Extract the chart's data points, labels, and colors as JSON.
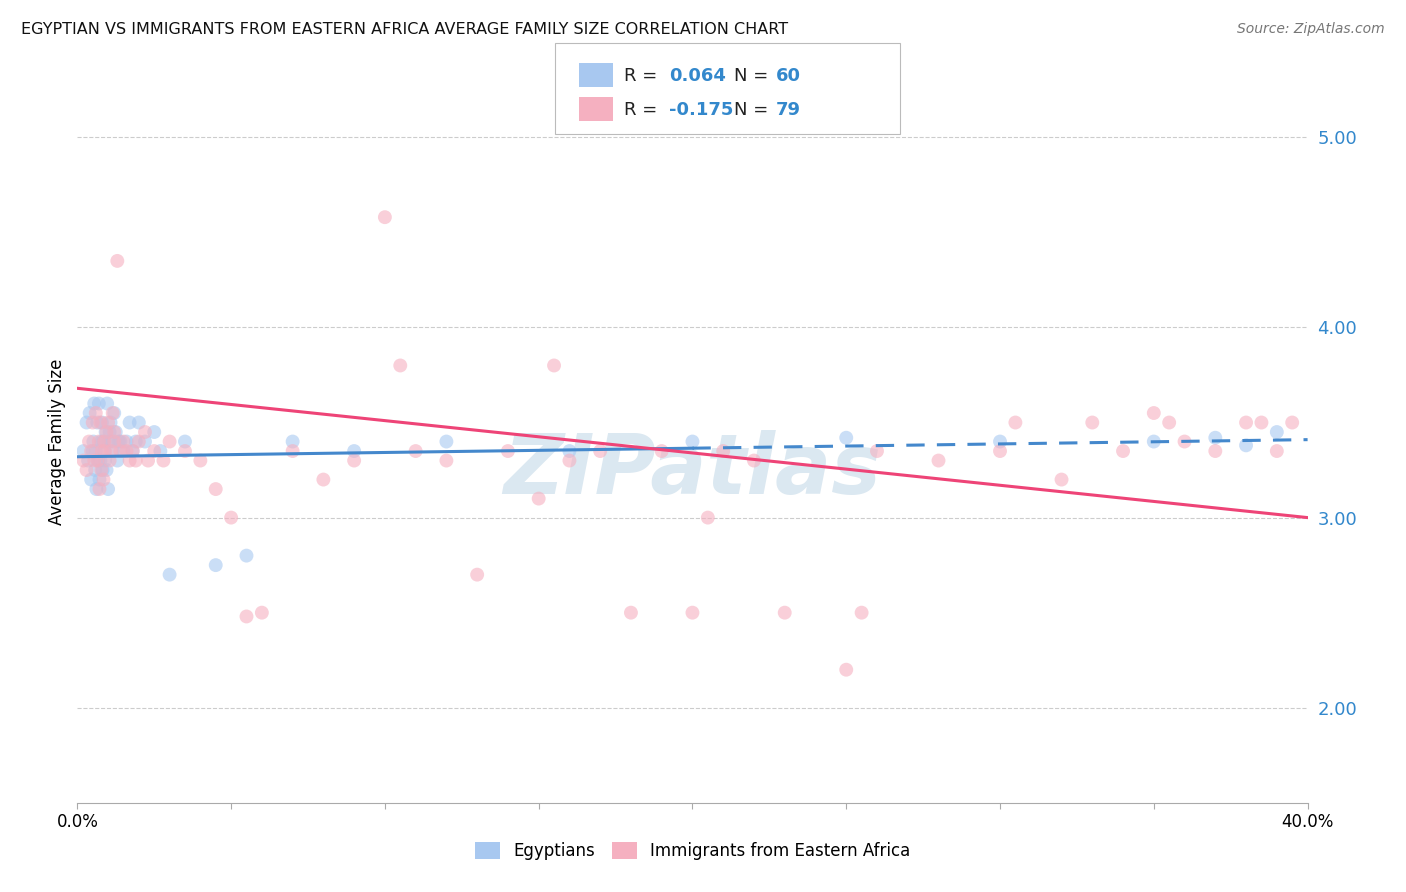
{
  "title": "EGYPTIAN VS IMMIGRANTS FROM EASTERN AFRICA AVERAGE FAMILY SIZE CORRELATION CHART",
  "source": "Source: ZipAtlas.com",
  "ylabel": "Average Family Size",
  "xlim": [
    0.0,
    40.0
  ],
  "ylim": [
    1.5,
    5.3
  ],
  "yticks_right": [
    2.0,
    3.0,
    4.0,
    5.0
  ],
  "grid_color": "#cccccc",
  "watermark": "ZIPatlas",
  "watermark_color": "#b0cce0",
  "R1": "0.064",
  "N1": "60",
  "R2": "-0.175",
  "N2": "79",
  "blue_color": "#a8c8f0",
  "pink_color": "#f5b0c0",
  "trend_blue": "#4488cc",
  "trend_pink": "#ee4477",
  "scatter_alpha": 0.6,
  "scatter_size": 100,
  "egyptians_label": "Egyptians",
  "immigrants_label": "Immigrants from Eastern Africa",
  "blue_x": [
    0.2,
    0.3,
    0.35,
    0.4,
    0.45,
    0.5,
    0.52,
    0.55,
    0.58,
    0.6,
    0.62,
    0.65,
    0.68,
    0.7,
    0.72,
    0.75,
    0.78,
    0.8,
    0.82,
    0.85,
    0.88,
    0.9,
    0.92,
    0.95,
    0.97,
    1.0,
    1.02,
    1.05,
    1.08,
    1.1,
    1.15,
    1.2,
    1.25,
    1.3,
    1.35,
    1.4,
    1.5,
    1.6,
    1.7,
    1.8,
    1.9,
    2.0,
    2.2,
    2.5,
    2.7,
    3.0,
    3.5,
    4.5,
    5.5,
    7.0,
    9.0,
    12.0,
    16.0,
    20.0,
    25.0,
    30.0,
    35.0,
    37.0,
    38.0,
    39.0
  ],
  "blue_y": [
    3.35,
    3.5,
    3.3,
    3.55,
    3.2,
    3.35,
    3.4,
    3.6,
    3.25,
    3.35,
    3.15,
    3.5,
    3.3,
    3.6,
    3.2,
    3.3,
    3.4,
    3.5,
    3.25,
    3.4,
    3.35,
    3.3,
    3.45,
    3.25,
    3.6,
    3.15,
    3.4,
    3.45,
    3.5,
    3.4,
    3.35,
    3.55,
    3.45,
    3.3,
    3.4,
    3.4,
    3.35,
    3.4,
    3.5,
    3.35,
    3.4,
    3.5,
    3.4,
    3.45,
    3.35,
    2.7,
    3.4,
    2.75,
    2.8,
    3.4,
    3.35,
    3.4,
    3.35,
    3.4,
    3.42,
    3.4,
    3.4,
    3.42,
    3.38,
    3.45
  ],
  "pink_x": [
    0.2,
    0.3,
    0.38,
    0.45,
    0.5,
    0.55,
    0.6,
    0.65,
    0.7,
    0.72,
    0.75,
    0.78,
    0.8,
    0.85,
    0.88,
    0.9,
    0.95,
    1.0,
    1.05,
    1.1,
    1.15,
    1.2,
    1.3,
    1.4,
    1.5,
    1.6,
    1.7,
    1.8,
    1.9,
    2.0,
    2.2,
    2.5,
    2.8,
    3.0,
    3.5,
    4.0,
    4.5,
    5.0,
    5.5,
    6.0,
    7.0,
    8.0,
    9.0,
    10.0,
    11.0,
    12.0,
    13.0,
    14.0,
    15.0,
    16.0,
    17.0,
    18.0,
    19.0,
    20.0,
    21.0,
    22.0,
    23.0,
    25.0,
    26.0,
    28.0,
    30.0,
    32.0,
    33.0,
    34.0,
    35.0,
    36.0,
    37.0,
    38.0,
    39.0,
    39.5,
    10.5,
    15.5,
    20.5,
    25.5,
    30.5,
    35.5,
    38.5,
    1.2,
    2.3
  ],
  "pink_y": [
    3.3,
    3.25,
    3.4,
    3.35,
    3.5,
    3.3,
    3.55,
    3.3,
    3.4,
    3.15,
    3.5,
    3.25,
    3.35,
    3.2,
    3.4,
    3.35,
    3.45,
    3.5,
    3.3,
    3.35,
    3.55,
    3.45,
    4.35,
    3.35,
    3.4,
    3.35,
    3.3,
    3.35,
    3.3,
    3.4,
    3.45,
    3.35,
    3.3,
    3.4,
    3.35,
    3.3,
    3.15,
    3.0,
    2.48,
    2.5,
    3.35,
    3.2,
    3.3,
    4.58,
    3.35,
    3.3,
    2.7,
    3.35,
    3.1,
    3.3,
    3.35,
    2.5,
    3.35,
    2.5,
    3.35,
    3.3,
    2.5,
    2.2,
    3.35,
    3.3,
    3.35,
    3.2,
    3.5,
    3.35,
    3.55,
    3.4,
    3.35,
    3.5,
    3.35,
    3.5,
    3.8,
    3.8,
    3.0,
    2.5,
    3.5,
    3.5,
    3.5,
    3.4,
    3.3
  ],
  "blue_trend_x0": 0.0,
  "blue_trend_y0": 3.32,
  "blue_trend_x1": 40.0,
  "blue_trend_y1": 3.41,
  "blue_solid_end": 20.0,
  "pink_trend_x0": 0.0,
  "pink_trend_y0": 3.68,
  "pink_trend_x1": 40.0,
  "pink_trend_y1": 3.0
}
